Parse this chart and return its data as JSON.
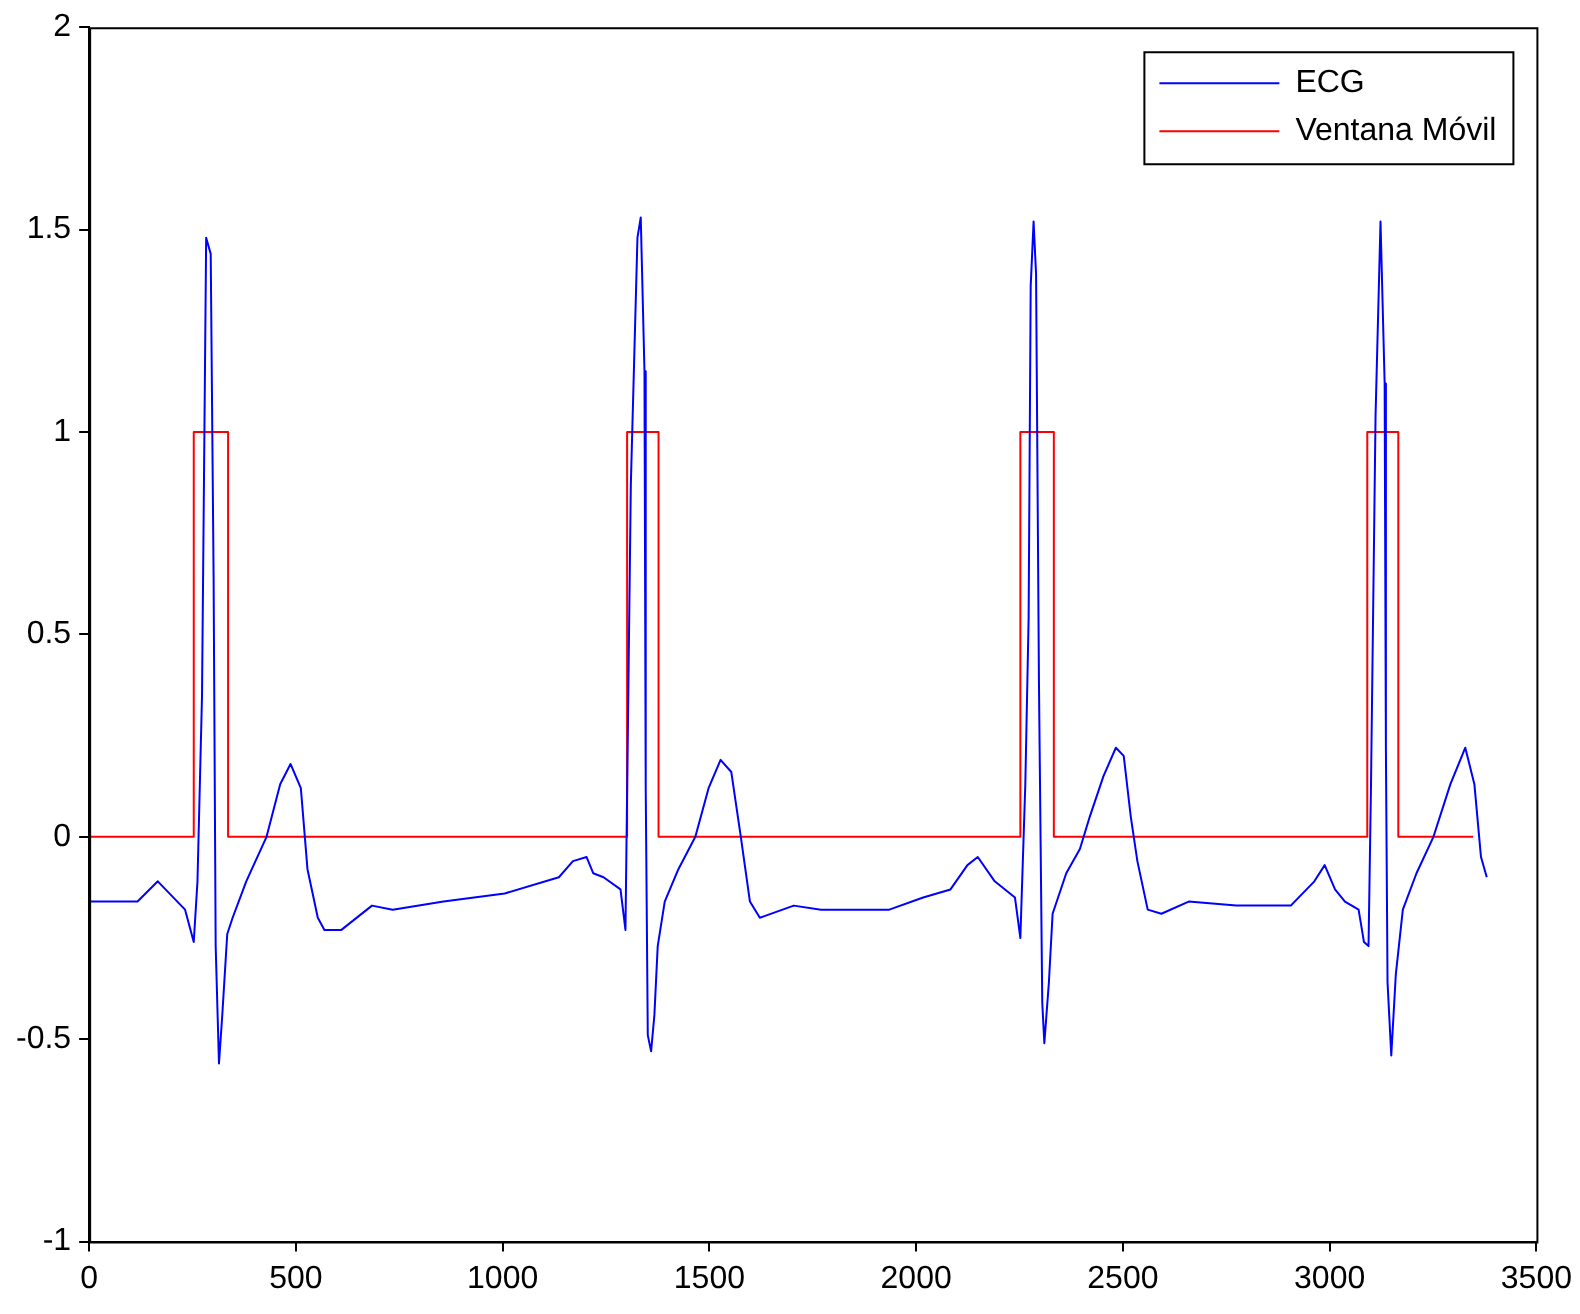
{
  "chart_data": {
    "type": "line",
    "xlim": [
      0,
      3500
    ],
    "xticks": [
      0,
      500,
      1000,
      1500,
      2000,
      2500,
      3000,
      3500
    ],
    "ylim": [
      -1,
      2
    ],
    "yticks": [
      -1,
      {
        "value": -0.5,
        "label": "-0.5"
      },
      0,
      {
        "value": 0.5,
        "label": "0.5"
      },
      1,
      {
        "value": 1.5,
        "label": "1.5"
      },
      2
    ],
    "grid": false,
    "legend": "top right",
    "marker": "none",
    "line_style": "solid",
    "series": [
      {
        "name": "ECG",
        "color": "#0000ff",
        "x": [
          0,
          117,
          166,
          232,
          253,
          262,
          273,
          283,
          294,
          301,
          306,
          314,
          322,
          334,
          347,
          380,
          429,
          462,
          487,
          512,
          528,
          553,
          569,
          610,
          684,
          734,
          857,
          1005,
          1136,
          1170,
          1203,
          1219,
          1244,
          1285,
          1297,
          1310,
          1326,
          1334,
          1343,
          1346,
          1351,
          1359,
          1367,
          1375,
          1392,
          1425,
          1466,
          1498,
          1527,
          1553,
          1576,
          1598,
          1622,
          1704,
          1770,
          1935,
          2017,
          2083,
          2124,
          2149,
          2190,
          2239,
          2252,
          2264,
          2272,
          2277,
          2284,
          2290,
          2297,
          2305,
          2310,
          2321,
          2330,
          2363,
          2396,
          2420,
          2453,
          2483,
          2502,
          2519,
          2535,
          2560,
          2593,
          2659,
          2774,
          2906,
          2963,
          2988,
          3013,
          3037,
          3070,
          3083,
          3094,
          3100,
          3111,
          3123,
          3133,
          3136,
          3140,
          3149,
          3160,
          3177,
          3210,
          3251,
          3292,
          3328,
          3350,
          3366,
          3380
        ],
        "values": [
          -0.16,
          -0.16,
          -0.11,
          -0.18,
          -0.26,
          -0.11,
          0.35,
          1.48,
          1.44,
          0.64,
          -0.27,
          -0.56,
          -0.44,
          -0.24,
          -0.2,
          -0.11,
          0,
          0.13,
          0.18,
          0.12,
          -0.08,
          -0.2,
          -0.23,
          -0.23,
          -0.17,
          -0.18,
          -0.16,
          -0.14,
          -0.1,
          -0.06,
          -0.05,
          -0.09,
          -0.1,
          -0.13,
          -0.23,
          0.87,
          1.48,
          1.53,
          1.15,
          0.12,
          -0.49,
          -0.53,
          -0.44,
          -0.27,
          -0.16,
          -0.08,
          0,
          0.12,
          0.19,
          0.16,
          0,
          -0.16,
          -0.2,
          -0.17,
          -0.18,
          -0.18,
          -0.15,
          -0.13,
          -0.07,
          -0.05,
          -0.11,
          -0.15,
          -0.25,
          0.13,
          0.54,
          1.36,
          1.52,
          1.39,
          0.38,
          -0.41,
          -0.51,
          -0.36,
          -0.19,
          -0.09,
          -0.03,
          0.05,
          0.15,
          0.22,
          0.2,
          0.05,
          -0.06,
          -0.18,
          -0.19,
          -0.16,
          -0.17,
          -0.17,
          -0.11,
          -0.07,
          -0.13,
          -0.16,
          -0.18,
          -0.26,
          -0.27,
          0.13,
          1.04,
          1.52,
          1.12,
          0.22,
          -0.36,
          -0.54,
          -0.34,
          -0.18,
          -0.09,
          0,
          0.13,
          0.22,
          0.13,
          -0.05,
          -0.1
        ]
      },
      {
        "name": "Ventana Móvil",
        "color": "#ff0000",
        "x": [
          0,
          253,
          253,
          336,
          336,
          1301,
          1301,
          1377,
          1377,
          2252,
          2252,
          2333,
          2333,
          3091,
          3091,
          3166,
          3166,
          3347
        ],
        "values": [
          0,
          0,
          1,
          1,
          0,
          0,
          1,
          1,
          0,
          0,
          1,
          1,
          0,
          0,
          1,
          1,
          0,
          0
        ]
      }
    ]
  }
}
